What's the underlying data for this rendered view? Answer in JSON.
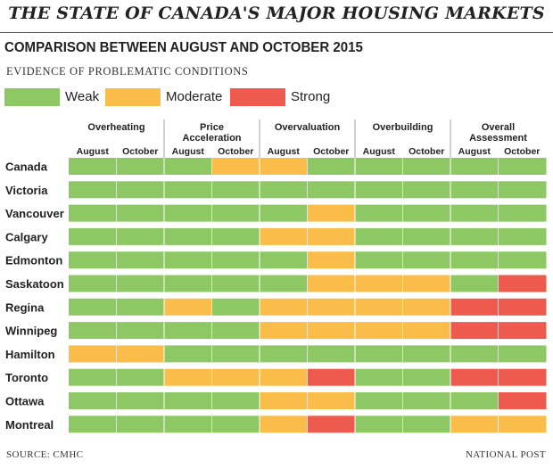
{
  "header": {
    "title": "THE STATE OF CANADA'S MAJOR HOUSING MARKETS",
    "subtitle": "COMPARISON BETWEEN AUGUST AND OCTOBER 2015",
    "evidence_label": "EVIDENCE OF PROBLEMATIC CONDITIONS"
  },
  "legend": {
    "weak": "Weak",
    "moderate": "Moderate",
    "strong": "Strong"
  },
  "colors": {
    "weak": "#8dc864",
    "moderate": "#fbbd4a",
    "strong": "#ef5a4e",
    "line": "#ffffff"
  },
  "footer": {
    "source": "SOURCE: CMHC",
    "credit": "NATIONAL POST"
  },
  "chart_data": {
    "type": "table",
    "title": "THE STATE OF CANADA'S MAJOR HOUSING MARKETS",
    "subtitle": "COMPARISON BETWEEN AUGUST AND OCTOBER 2015",
    "categories": [
      "Overheating",
      "Price Acceleration",
      "Overvaluation",
      "Overbuilding",
      "Overall Assessment"
    ],
    "category_labels": [
      [
        "Overheating"
      ],
      [
        "Price",
        "Acceleration"
      ],
      [
        "Overvaluation"
      ],
      [
        "Overbuilding"
      ],
      [
        "Overall",
        "Assessment"
      ]
    ],
    "periods": [
      "August",
      "October"
    ],
    "levels": [
      "Weak",
      "Moderate",
      "Strong"
    ],
    "rows": [
      {
        "city": "Canada",
        "values": [
          "Weak",
          "Weak",
          "Weak",
          "Moderate",
          "Moderate",
          "Weak",
          "Weak",
          "Weak",
          "Weak",
          "Weak"
        ]
      },
      {
        "city": "Victoria",
        "values": [
          "Weak",
          "Weak",
          "Weak",
          "Weak",
          "Weak",
          "Weak",
          "Weak",
          "Weak",
          "Weak",
          "Weak"
        ]
      },
      {
        "city": "Vancouver",
        "values": [
          "Weak",
          "Weak",
          "Weak",
          "Weak",
          "Weak",
          "Moderate",
          "Weak",
          "Weak",
          "Weak",
          "Weak"
        ]
      },
      {
        "city": "Calgary",
        "values": [
          "Weak",
          "Weak",
          "Weak",
          "Weak",
          "Moderate",
          "Moderate",
          "Weak",
          "Weak",
          "Weak",
          "Weak"
        ]
      },
      {
        "city": "Edmonton",
        "values": [
          "Weak",
          "Weak",
          "Weak",
          "Weak",
          "Weak",
          "Moderate",
          "Weak",
          "Weak",
          "Weak",
          "Weak"
        ]
      },
      {
        "city": "Saskatoon",
        "values": [
          "Weak",
          "Weak",
          "Weak",
          "Weak",
          "Weak",
          "Moderate",
          "Moderate",
          "Moderate",
          "Weak",
          "Strong"
        ]
      },
      {
        "city": "Regina",
        "values": [
          "Weak",
          "Weak",
          "Moderate",
          "Weak",
          "Moderate",
          "Moderate",
          "Moderate",
          "Moderate",
          "Strong",
          "Strong"
        ]
      },
      {
        "city": "Winnipeg",
        "values": [
          "Weak",
          "Weak",
          "Weak",
          "Weak",
          "Moderate",
          "Moderate",
          "Moderate",
          "Moderate",
          "Strong",
          "Strong"
        ]
      },
      {
        "city": "Hamilton",
        "values": [
          "Moderate",
          "Moderate",
          "Weak",
          "Weak",
          "Weak",
          "Weak",
          "Weak",
          "Weak",
          "Weak",
          "Weak"
        ]
      },
      {
        "city": "Toronto",
        "values": [
          "Weak",
          "Weak",
          "Moderate",
          "Moderate",
          "Moderate",
          "Strong",
          "Weak",
          "Weak",
          "Strong",
          "Strong"
        ]
      },
      {
        "city": "Ottawa",
        "values": [
          "Weak",
          "Weak",
          "Weak",
          "Weak",
          "Moderate",
          "Moderate",
          "Weak",
          "Weak",
          "Weak",
          "Strong"
        ]
      },
      {
        "city": "Montreal",
        "values": [
          "Weak",
          "Weak",
          "Weak",
          "Weak",
          "Moderate",
          "Strong",
          "Weak",
          "Weak",
          "Moderate",
          "Moderate"
        ]
      }
    ]
  }
}
